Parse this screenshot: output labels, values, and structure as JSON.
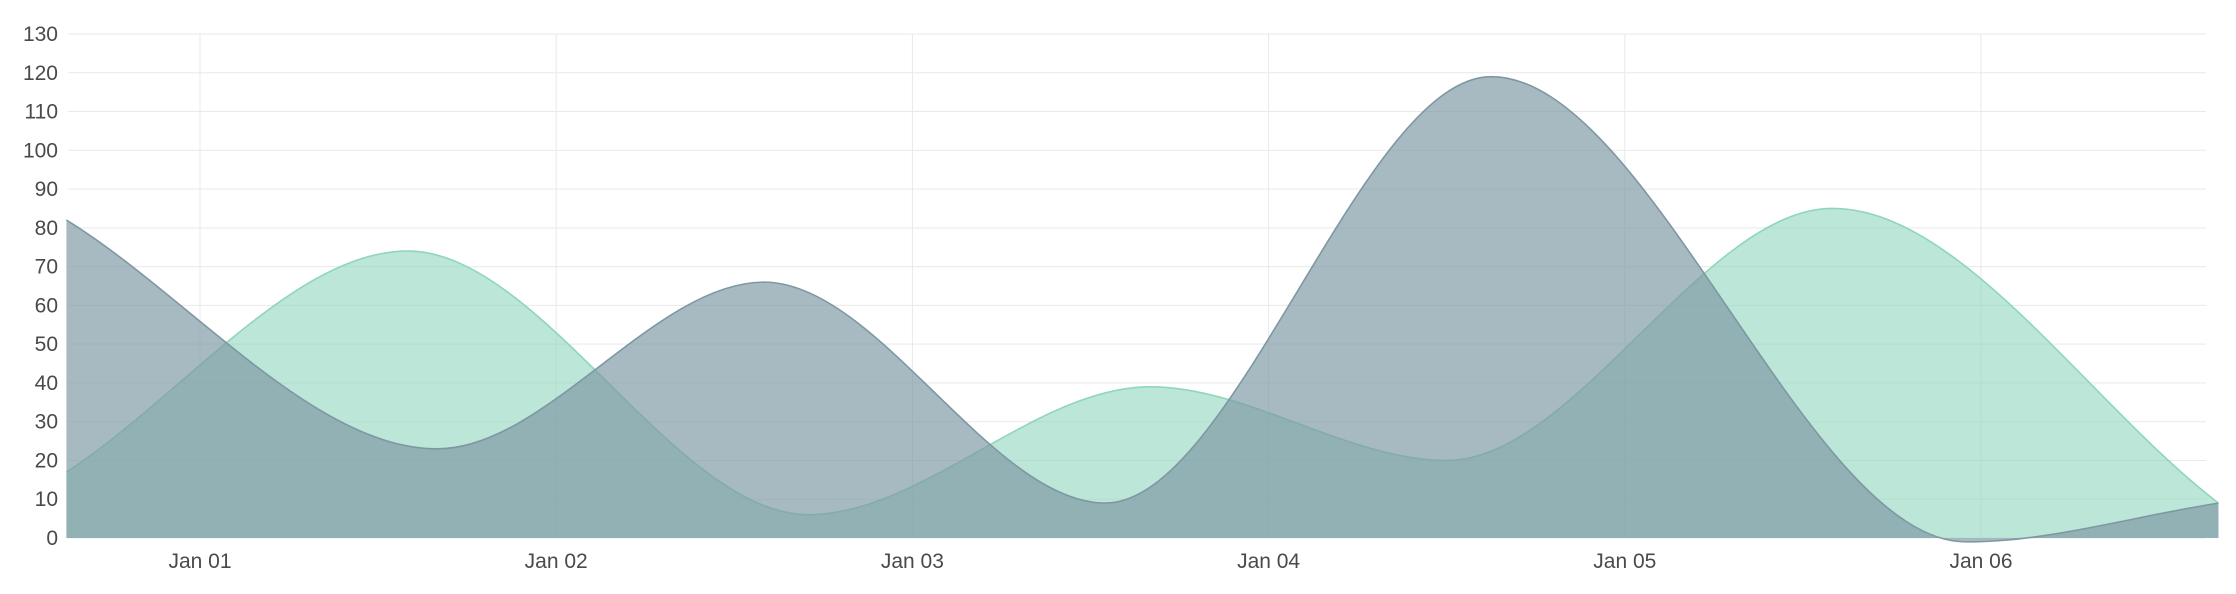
{
  "chart_data": {
    "type": "area",
    "title": "",
    "xlabel": "",
    "ylabel": "",
    "ylim": [
      0,
      130
    ],
    "y_ticks": [
      0,
      10,
      20,
      30,
      40,
      50,
      60,
      70,
      80,
      90,
      100,
      110,
      120,
      130
    ],
    "x_ticks": [
      "Jan 01",
      "Jan 02",
      "Jan 03",
      "Jan 04",
      "Jan 05",
      "Jan 06"
    ],
    "grid": true,
    "legend": "none",
    "series": [
      {
        "color": "#8fd6bc",
        "points": [
          {
            "x": "Dec 31 15:00",
            "y": 17
          },
          {
            "x": "Jan 01 14:00",
            "y": 74
          },
          {
            "x": "Jan 02 17:00",
            "y": 6
          },
          {
            "x": "Jan 03 16:00",
            "y": 39
          },
          {
            "x": "Jan 04 12:00",
            "y": 20
          },
          {
            "x": "Jan 05 14:00",
            "y": 85
          },
          {
            "x": "Jan 06 16:00",
            "y": 9
          }
        ]
      },
      {
        "color": "#7e98a3",
        "points": [
          {
            "x": "Dec 31 15:00",
            "y": 82
          },
          {
            "x": "Jan 01 16:00",
            "y": 23
          },
          {
            "x": "Jan 02 14:00",
            "y": 66
          },
          {
            "x": "Jan 03 13:00",
            "y": 9
          },
          {
            "x": "Jan 04 15:00",
            "y": 119
          },
          {
            "x": "Jan 05 23:00",
            "y": -1
          },
          {
            "x": "Jan 06 16:00",
            "y": 9
          }
        ]
      }
    ]
  }
}
